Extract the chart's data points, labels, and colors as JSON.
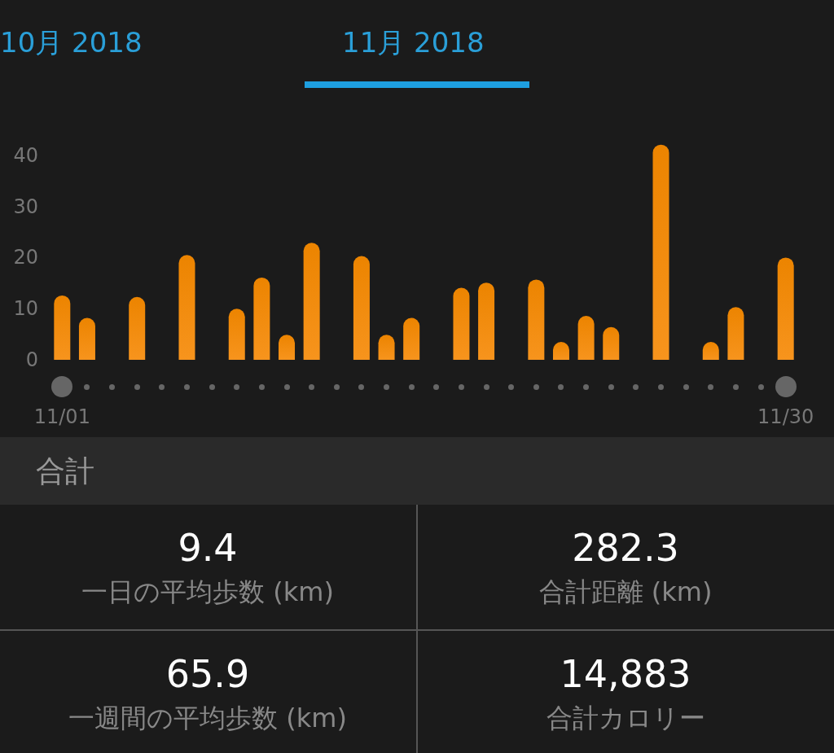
{
  "chart_data": {
    "type": "bar",
    "title": "11月 2018",
    "categories": [
      "11/01",
      null,
      null,
      null,
      null,
      null,
      null,
      null,
      null,
      null,
      null,
      null,
      null,
      null,
      null,
      null,
      null,
      null,
      null,
      null,
      null,
      null,
      null,
      null,
      null,
      null,
      null,
      null,
      null,
      "11/30"
    ],
    "values": [
      12.6,
      8.2,
      0,
      12.3,
      0,
      20.5,
      0,
      10.0,
      16.1,
      4.9,
      22.9,
      0,
      20.3,
      4.9,
      8.2,
      0,
      14.1,
      15.1,
      0,
      15.7,
      3.5,
      8.6,
      6.4,
      0,
      42.1,
      0,
      3.5,
      10.3,
      0,
      20.0
    ],
    "color": "#f7941d",
    "ylim": [
      0,
      43
    ],
    "yticks": [
      0,
      10,
      20,
      30,
      40
    ],
    "grid": false,
    "annotations": [
      "10月 2018",
      "合計",
      "9.4",
      "一日の平均歩数 (km)",
      "282.3",
      "合計距離 (km)",
      "65.9",
      "一週間の平均歩数 (km)",
      "14,883",
      "合計カロリー"
    ]
  }
}
